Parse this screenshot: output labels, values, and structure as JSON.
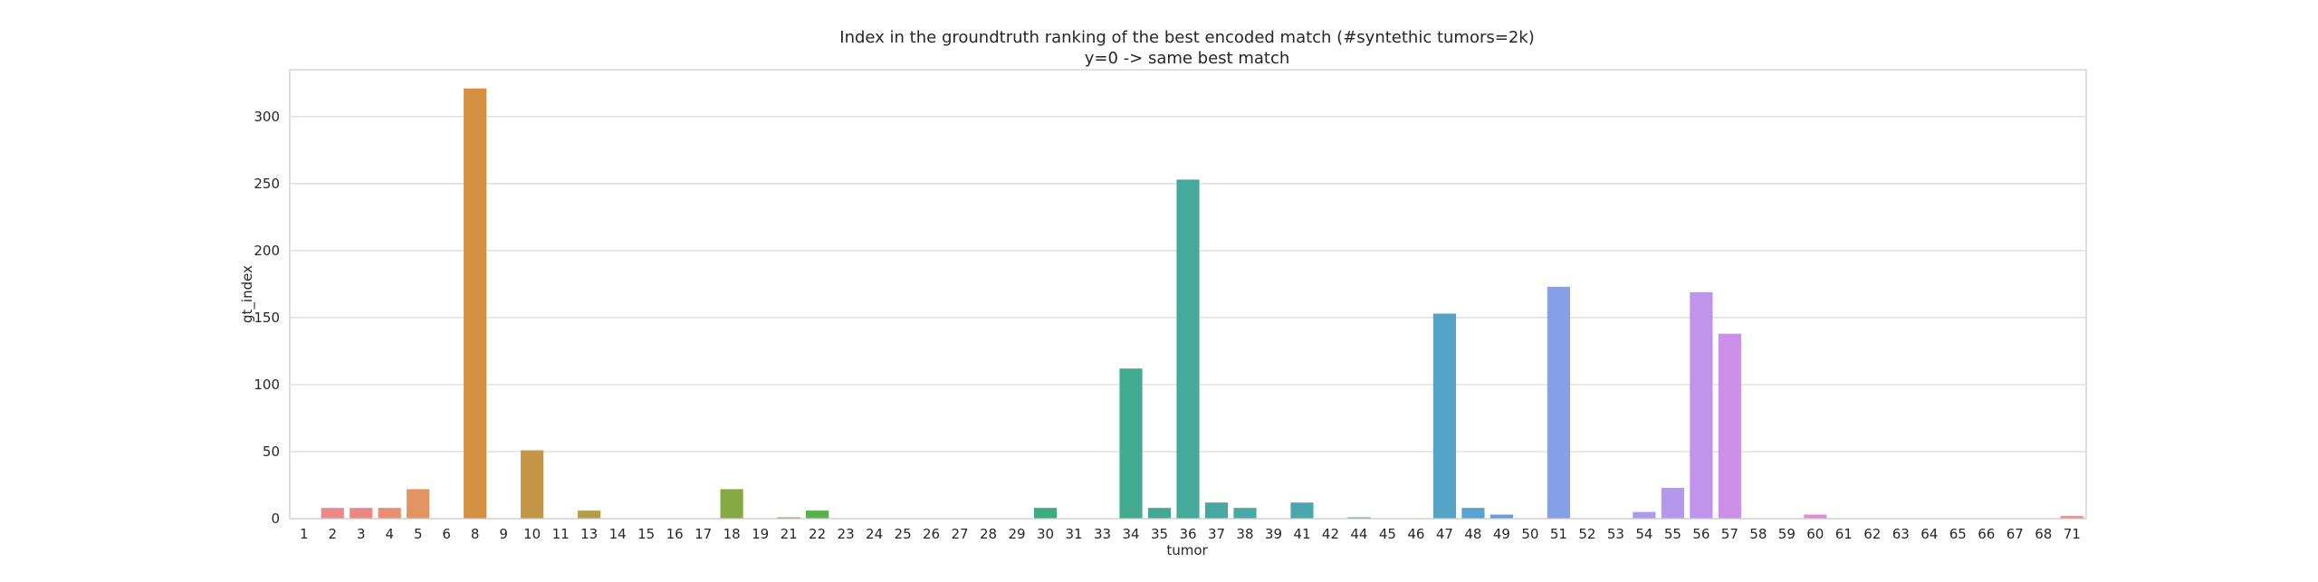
{
  "chart_data": {
    "type": "bar",
    "title": "Index in the groundtruth ranking of the best encoded match (#syntethic tumors=2k)",
    "subtitle": "y=0 -> same best match",
    "xlabel": "tumor",
    "ylabel": "gt_index",
    "ylim": [
      0,
      335
    ],
    "yticks": [
      0,
      50,
      100,
      150,
      200,
      250,
      300
    ],
    "grid": true,
    "categories": [
      "1",
      "2",
      "3",
      "4",
      "5",
      "6",
      "8",
      "9",
      "10",
      "11",
      "13",
      "14",
      "15",
      "16",
      "17",
      "18",
      "19",
      "21",
      "22",
      "23",
      "24",
      "25",
      "26",
      "27",
      "28",
      "29",
      "30",
      "31",
      "33",
      "34",
      "35",
      "36",
      "37",
      "38",
      "39",
      "41",
      "42",
      "44",
      "45",
      "46",
      "47",
      "48",
      "49",
      "50",
      "51",
      "52",
      "53",
      "54",
      "55",
      "56",
      "57",
      "58",
      "59",
      "60",
      "61",
      "62",
      "63",
      "64",
      "65",
      "66",
      "67",
      "68",
      "71"
    ],
    "values": [
      0,
      8,
      8,
      8,
      22,
      0,
      321,
      0,
      51,
      0,
      6,
      0,
      0,
      0,
      0,
      22,
      0,
      1,
      6,
      0,
      0,
      0,
      0,
      0,
      0,
      0,
      8,
      0,
      0,
      112,
      8,
      253,
      12,
      8,
      0,
      12,
      0,
      1,
      0,
      0,
      153,
      8,
      3,
      0,
      173,
      0,
      0,
      5,
      23,
      169,
      138,
      0,
      0,
      3,
      0,
      0,
      0,
      0,
      0,
      0,
      0,
      0,
      2
    ],
    "colors": [
      "#e9878e",
      "#e9898a",
      "#e98a80",
      "#e78e73",
      "#e29461",
      "#dd9643",
      "#d59041",
      "#cd9442",
      "#c59645",
      "#bd9847",
      "#b69c47",
      "#ad9f46",
      "#a5a244",
      "#9ca541",
      "#93a841",
      "#86aa43",
      "#79ac45",
      "#6bae49",
      "#5ab04d",
      "#4ab156",
      "#40b15e",
      "#3bb166",
      "#3bb06c",
      "#3cb072",
      "#3daf77",
      "#3ead7c",
      "#3eac81",
      "#3fab86",
      "#3fab8a",
      "#42aa90",
      "#43a995",
      "#45a99c",
      "#46a8a0",
      "#47a8a4",
      "#48a7a9",
      "#4aa7ae",
      "#4ba6b2",
      "#4da6b6",
      "#4fa5bb",
      "#52a5c1",
      "#54a4c8",
      "#58a3cf",
      "#61a1d8",
      "#6ea0e0",
      "#86a0e8",
      "#959fe9",
      "#a09deb",
      "#ab9aec",
      "#b597ec",
      "#c094eb",
      "#cb91e8",
      "#d58ee3",
      "#dd8add",
      "#e28bd6",
      "#e58bd0",
      "#e68cc8",
      "#e78dc0",
      "#e88db8",
      "#e98db0",
      "#e98ea8",
      "#e98ea0",
      "#e98f98",
      "#e99090"
    ]
  }
}
